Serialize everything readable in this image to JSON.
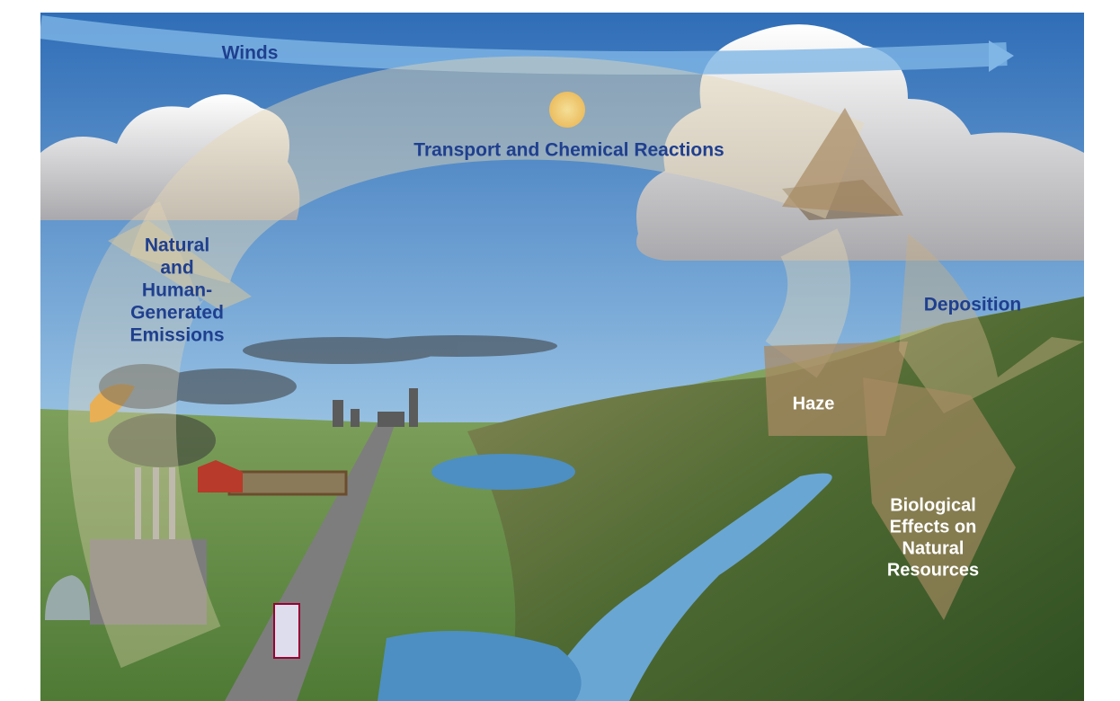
{
  "labels": {
    "winds": "Winds",
    "transport": "Transport and Chemical Reactions",
    "emissions": [
      "Natural",
      "and",
      "Human-",
      "Generated",
      "Emissions"
    ],
    "deposition": "Deposition",
    "haze": "Haze",
    "effects": [
      "Biological",
      "Effects on",
      "Natural",
      "Resources"
    ]
  }
}
